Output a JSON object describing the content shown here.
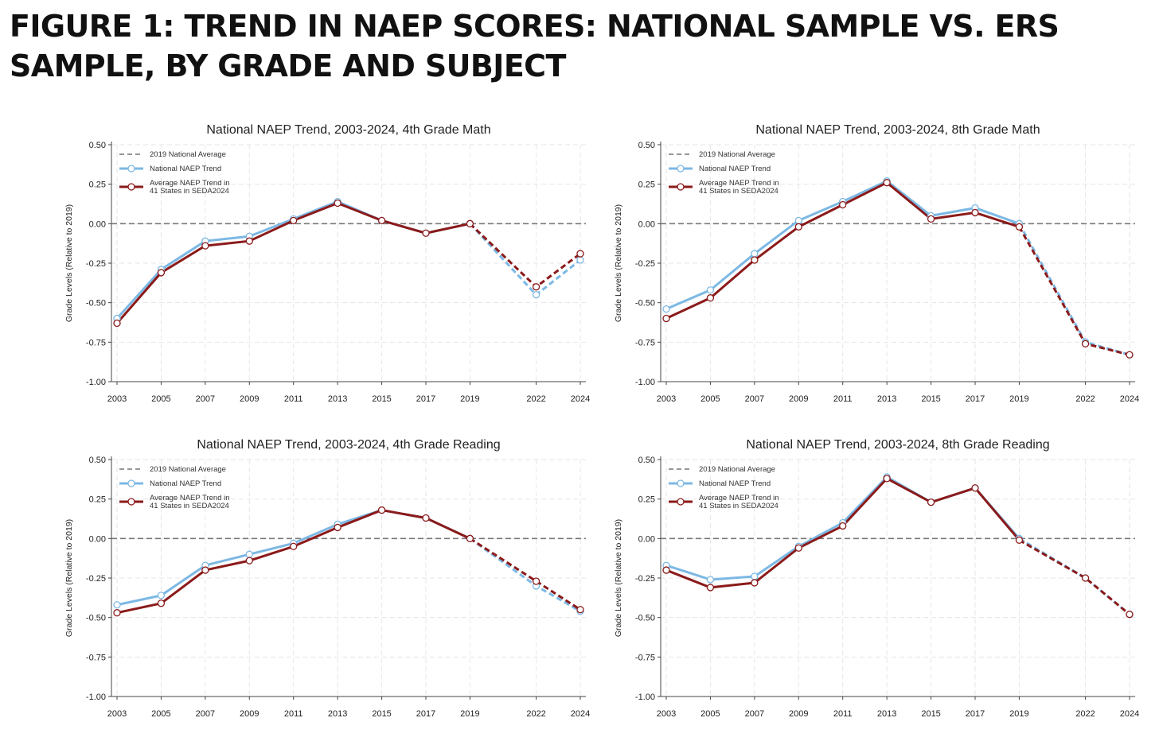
{
  "figure": {
    "title": "FIGURE 1: TREND IN NAEP SCORES: NATIONAL SAMPLE VS. ERS SAMPLE, BY GRADE AND SUBJECT"
  },
  "colors": {
    "national": "#7cb8e4",
    "seda": "#8b1a1a",
    "reference": "#777777",
    "grid": "#e6e6e6"
  },
  "legend": {
    "reference": "2019 National Average",
    "national": "National NAEP Trend",
    "seda_line1": "Average NAEP Trend in",
    "seda_line2": "41 States in SEDA2024"
  },
  "chart_data": [
    {
      "type": "line",
      "title": "National NAEP Trend, 2003-2024, 4th Grade Math",
      "ylabel": "Grade Levels (Relative to 2019)",
      "xlabel": "",
      "x": [
        2003,
        2005,
        2007,
        2009,
        2011,
        2013,
        2015,
        2017,
        2019,
        2022,
        2024
      ],
      "ylim": [
        -1.0,
        0.5
      ],
      "yticks": [
        0.5,
        0.25,
        0.0,
        -0.25,
        -0.5,
        -0.75,
        -1.0
      ],
      "ytick_labels": [
        "0.50",
        "0.25",
        "0.00",
        "-0.25",
        "-0.50",
        "-0.75",
        "-1.00"
      ],
      "grid": true,
      "legend_position": "top-left",
      "series": [
        {
          "name": "National NAEP Trend",
          "values": [
            -0.6,
            -0.29,
            -0.11,
            -0.08,
            0.03,
            0.14,
            0.02,
            -0.06,
            0.0,
            -0.45,
            -0.23
          ]
        },
        {
          "name": "Average NAEP Trend in 41 States in SEDA2024",
          "values": [
            -0.63,
            -0.31,
            -0.14,
            -0.11,
            0.02,
            0.13,
            0.02,
            -0.06,
            0.0,
            -0.4,
            -0.19
          ]
        }
      ],
      "reference_line": {
        "name": "2019 National Average",
        "value": 0.0
      }
    },
    {
      "type": "line",
      "title": "National NAEP Trend, 2003-2024, 8th Grade Math",
      "ylabel": "Grade Levels (Relative to 2019)",
      "xlabel": "",
      "x": [
        2003,
        2005,
        2007,
        2009,
        2011,
        2013,
        2015,
        2017,
        2019,
        2022,
        2024
      ],
      "ylim": [
        -1.0,
        0.5
      ],
      "yticks": [
        0.5,
        0.25,
        0.0,
        -0.25,
        -0.5,
        -0.75,
        -1.0
      ],
      "ytick_labels": [
        "0.50",
        "0.25",
        "0.00",
        "-0.25",
        "-0.50",
        "-0.75",
        "-1.00"
      ],
      "grid": true,
      "legend_position": "top-left",
      "series": [
        {
          "name": "National NAEP Trend",
          "values": [
            -0.54,
            -0.42,
            -0.19,
            0.02,
            0.14,
            0.27,
            0.05,
            0.1,
            0.0,
            -0.75,
            -0.83
          ]
        },
        {
          "name": "Average NAEP Trend in 41 States in SEDA2024",
          "values": [
            -0.6,
            -0.47,
            -0.23,
            -0.02,
            0.12,
            0.26,
            0.03,
            0.07,
            -0.02,
            -0.76,
            -0.83
          ]
        }
      ],
      "reference_line": {
        "name": "2019 National Average",
        "value": 0.0
      }
    },
    {
      "type": "line",
      "title": "National NAEP Trend, 2003-2024, 4th Grade Reading",
      "ylabel": "Grade Levels (Relative to 2019)",
      "xlabel": "",
      "x": [
        2003,
        2005,
        2007,
        2009,
        2011,
        2013,
        2015,
        2017,
        2019,
        2022,
        2024
      ],
      "ylim": [
        -1.0,
        0.5
      ],
      "yticks": [
        0.5,
        0.25,
        0.0,
        -0.25,
        -0.5,
        -0.75,
        -1.0
      ],
      "ytick_labels": [
        "0.50",
        "0.25",
        "0.00",
        "-0.25",
        "-0.50",
        "-0.75",
        "-1.00"
      ],
      "grid": true,
      "legend_position": "top-left",
      "series": [
        {
          "name": "National NAEP Trend",
          "values": [
            -0.42,
            -0.36,
            -0.17,
            -0.1,
            -0.03,
            0.09,
            0.18,
            0.13,
            0.0,
            -0.3,
            -0.46
          ]
        },
        {
          "name": "Average NAEP Trend in 41 States in SEDA2024",
          "values": [
            -0.47,
            -0.41,
            -0.2,
            -0.14,
            -0.05,
            0.07,
            0.18,
            0.13,
            0.0,
            -0.27,
            -0.45
          ]
        }
      ],
      "reference_line": {
        "name": "2019 National Average",
        "value": 0.0
      }
    },
    {
      "type": "line",
      "title": "National NAEP Trend, 2003-2024, 8th Grade Reading",
      "ylabel": "Grade Levels (Relative to 2019)",
      "xlabel": "",
      "x": [
        2003,
        2005,
        2007,
        2009,
        2011,
        2013,
        2015,
        2017,
        2019,
        2022,
        2024
      ],
      "ylim": [
        -1.0,
        0.5
      ],
      "yticks": [
        0.5,
        0.25,
        0.0,
        -0.25,
        -0.5,
        -0.75,
        -1.0
      ],
      "ytick_labels": [
        "0.50",
        "0.25",
        "0.00",
        "-0.25",
        "-0.50",
        "-0.75",
        "-1.00"
      ],
      "grid": true,
      "legend_position": "top-left",
      "series": [
        {
          "name": "National NAEP Trend",
          "values": [
            -0.17,
            -0.26,
            -0.24,
            -0.05,
            0.1,
            0.39,
            0.23,
            0.32,
            0.0,
            -0.25,
            -0.48
          ]
        },
        {
          "name": "Average NAEP Trend in 41 States in SEDA2024",
          "values": [
            -0.2,
            -0.31,
            -0.28,
            -0.06,
            0.08,
            0.38,
            0.23,
            0.32,
            -0.01,
            -0.25,
            -0.48
          ]
        }
      ],
      "reference_line": {
        "name": "2019 National Average",
        "value": 0.0
      }
    }
  ]
}
